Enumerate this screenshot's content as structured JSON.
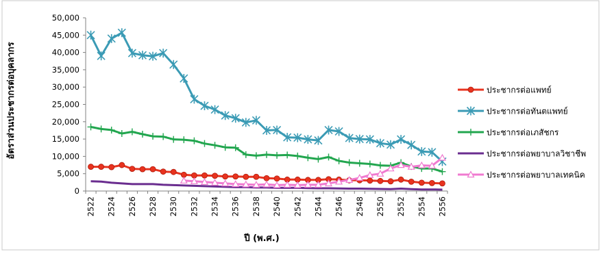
{
  "chart_data": {
    "type": "line",
    "title": "",
    "xlabel": "ปี (พ.ศ.)",
    "ylabel": "อัตราส่วนประชากรต่อบุคลากร",
    "ylim": [
      0,
      50000
    ],
    "ytick_labels": [
      "0",
      "5,000",
      "10,000",
      "15,000",
      "20,000",
      "25,000",
      "30,000",
      "35,000",
      "40,000",
      "45,000",
      "50,000"
    ],
    "ytick_values": [
      0,
      5000,
      10000,
      15000,
      20000,
      25000,
      30000,
      35000,
      40000,
      45000,
      50000
    ],
    "x": [
      2522,
      2523,
      2524,
      2525,
      2526,
      2527,
      2528,
      2529,
      2530,
      2531,
      2532,
      2533,
      2534,
      2535,
      2536,
      2537,
      2538,
      2539,
      2540,
      2541,
      2542,
      2543,
      2544,
      2545,
      2546,
      2547,
      2548,
      2549,
      2550,
      2551,
      2552,
      2553,
      2554,
      2555,
      2556
    ],
    "xtick_labels": [
      "2522",
      "2524",
      "2526",
      "2528",
      "2530",
      "2532",
      "2534",
      "2536",
      "2538",
      "2540",
      "2542",
      "2544",
      "2546",
      "2548",
      "2550",
      "2552",
      "2554",
      "2556"
    ],
    "legend_position": "right",
    "grid": false,
    "series": [
      {
        "name": "ประชากรต่อแพทย์",
        "color": "#e8331f",
        "marker": "circle",
        "values": [
          7000,
          7000,
          6900,
          7500,
          6400,
          6300,
          6300,
          5600,
          5500,
          4700,
          4500,
          4500,
          4400,
          4200,
          4200,
          4100,
          4100,
          3700,
          3600,
          3300,
          3300,
          3200,
          3200,
          3400,
          3300,
          3100,
          3100,
          3000,
          2900,
          2800,
          3300,
          2700,
          2400,
          2300,
          2200
        ]
      },
      {
        "name": "ประชากรต่อทันตแพทย์",
        "color": "#3b9bb5",
        "marker": "star",
        "values": [
          45000,
          39000,
          44000,
          45700,
          39800,
          39200,
          38900,
          39800,
          36500,
          32500,
          26500,
          24600,
          23500,
          21800,
          21000,
          19800,
          20400,
          17500,
          17600,
          15500,
          15400,
          14900,
          14600,
          17600,
          17200,
          15300,
          15000,
          14900,
          13800,
          13400,
          14900,
          13300,
          11400,
          11200,
          8500
        ]
      },
      {
        "name": "ประชากรต่อเภสัชกร",
        "color": "#22a64f",
        "marker": "plus",
        "values": [
          18500,
          17900,
          17600,
          16600,
          17100,
          16400,
          15800,
          15700,
          14900,
          14800,
          14500,
          13700,
          13200,
          12600,
          12500,
          10500,
          10200,
          10500,
          10300,
          10400,
          10100,
          9600,
          9200,
          9800,
          8700,
          8200,
          8000,
          7800,
          7400,
          7300,
          8200,
          7100,
          6500,
          6500,
          5600
        ]
      },
      {
        "name": "ประชากรต่อพยาบาลวิชาชีพ",
        "color": "#6a2d8f",
        "marker": "none",
        "values": [
          2800,
          2700,
          2400,
          2200,
          2000,
          2000,
          2000,
          1800,
          1700,
          1600,
          1500,
          1400,
          1300,
          1200,
          1100,
          1100,
          1000,
          1000,
          900,
          900,
          900,
          850,
          800,
          800,
          750,
          700,
          700,
          650,
          600,
          550,
          700,
          550,
          450,
          450,
          400
        ]
      },
      {
        "name": "ประชากรต่อพยาบาลเทคนิค",
        "color": "#f07ad0",
        "marker": "triangle",
        "values": [
          null,
          null,
          null,
          null,
          null,
          null,
          null,
          null,
          null,
          3000,
          2800,
          2600,
          2400,
          2200,
          2000,
          1900,
          1800,
          1900,
          1700,
          1800,
          1700,
          1800,
          1800,
          2200,
          2700,
          3200,
          3800,
          4600,
          5000,
          6500,
          7500,
          7000,
          7400,
          7300,
          9600
        ]
      }
    ]
  }
}
